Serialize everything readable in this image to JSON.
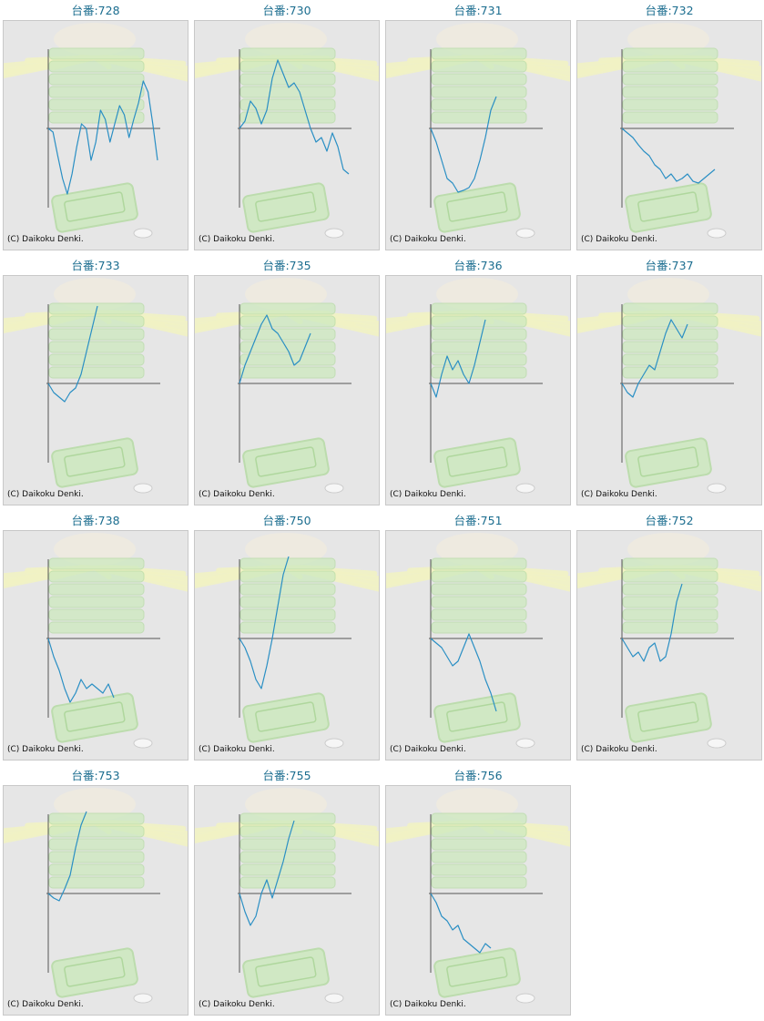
{
  "page": {
    "machine_label_prefix": "台番:",
    "copyright": "(C) Daikoku Denki."
  },
  "colors": {
    "line": "#2a8fc4",
    "axis": "#555555",
    "title": "#1b6d8f",
    "panel_bg": "#e6e6e6",
    "decor_green": "#cde9bf",
    "decor_rays": "#f2f3c4"
  },
  "chart_data": [
    {
      "type": "line",
      "title": "台番:728",
      "points": [
        0,
        -4,
        -30,
        -55,
        -72,
        -50,
        -20,
        5,
        0,
        -35,
        -15,
        20,
        10,
        -15,
        5,
        25,
        15,
        -10,
        10,
        28,
        52,
        40,
        5,
        -35
      ]
    },
    {
      "type": "line",
      "title": "台番:730",
      "points": [
        0,
        8,
        30,
        22,
        5,
        20,
        55,
        75,
        60,
        45,
        50,
        40,
        20,
        0,
        -15,
        -10,
        -25,
        -5,
        -20,
        -45,
        -50
      ]
    },
    {
      "type": "line",
      "title": "台番:731",
      "points": [
        0,
        -15,
        -35,
        -55,
        -60,
        -70,
        -68,
        -65,
        -55,
        -35,
        -10,
        20,
        35
      ]
    },
    {
      "type": "line",
      "title": "台番:732",
      "points": [
        0,
        -5,
        -10,
        -18,
        -25,
        -30,
        -40,
        -45,
        -55,
        -50,
        -58,
        -55,
        -50,
        -58,
        -60,
        -55,
        -50,
        -45
      ]
    },
    {
      "type": "line",
      "title": "台番:733",
      "points": [
        0,
        -10,
        -15,
        -20,
        -10,
        -5,
        10,
        35,
        60,
        85
      ]
    },
    {
      "type": "line",
      "title": "台番:735",
      "points": [
        0,
        20,
        35,
        50,
        65,
        75,
        60,
        55,
        45,
        35,
        20,
        25,
        40,
        55
      ]
    },
    {
      "type": "line",
      "title": "台番:736",
      "points": [
        0,
        -15,
        10,
        30,
        15,
        25,
        10,
        0,
        20,
        45,
        70
      ]
    },
    {
      "type": "line",
      "title": "台番:737",
      "points": [
        0,
        -10,
        -15,
        0,
        10,
        20,
        15,
        35,
        55,
        70,
        60,
        50,
        65
      ]
    },
    {
      "type": "line",
      "title": "台番:738",
      "points": [
        0,
        -20,
        -35,
        -55,
        -70,
        -60,
        -45,
        -55,
        -50,
        -55,
        -60,
        -50,
        -65
      ]
    },
    {
      "type": "line",
      "title": "台番:750",
      "points": [
        0,
        -10,
        -25,
        -45,
        -55,
        -30,
        0,
        35,
        70,
        90
      ]
    },
    {
      "type": "line",
      "title": "台番:751",
      "points": [
        0,
        -5,
        -10,
        -20,
        -30,
        -25,
        -10,
        5,
        -10,
        -25,
        -45,
        -60,
        -80
      ]
    },
    {
      "type": "line",
      "title": "台番:752",
      "points": [
        0,
        -10,
        -20,
        -15,
        -25,
        -10,
        -5,
        -25,
        -20,
        5,
        40,
        60
      ]
    },
    {
      "type": "line",
      "title": "台番:753",
      "points": [
        0,
        -5,
        -8,
        5,
        20,
        50,
        75,
        90
      ]
    },
    {
      "type": "line",
      "title": "台番:755",
      "points": [
        0,
        -20,
        -35,
        -25,
        0,
        15,
        -5,
        15,
        35,
        60,
        80
      ]
    },
    {
      "type": "line",
      "title": "台番:756",
      "points": [
        0,
        -10,
        -25,
        -30,
        -40,
        -35,
        -50,
        -55,
        -60,
        -65,
        -55,
        -60
      ]
    }
  ]
}
